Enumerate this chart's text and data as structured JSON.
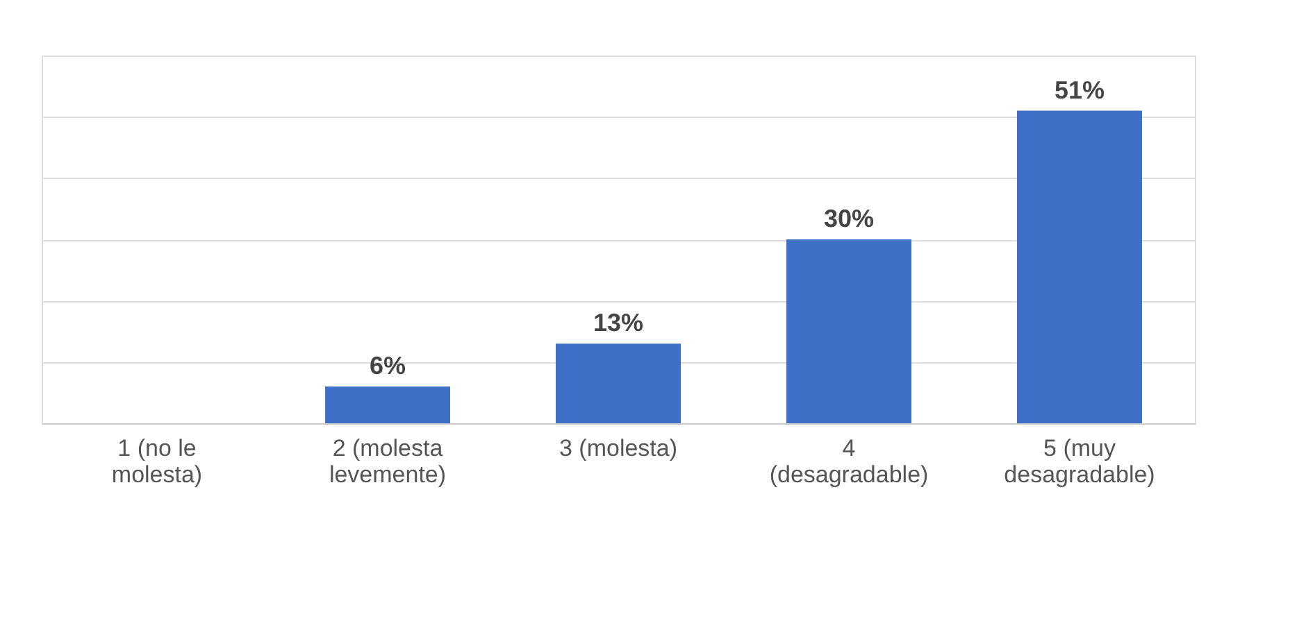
{
  "chart_data": {
    "type": "bar",
    "categories": [
      "1 (no le molesta)",
      "2 (molesta levemente)",
      "3 (molesta)",
      "4 (desagradable)",
      "5 (muy desagradable)"
    ],
    "values": [
      0,
      6,
      13,
      30,
      51
    ],
    "value_labels": [
      null,
      "6%",
      "13%",
      "30%",
      "51%"
    ],
    "color": "#3f6fc6",
    "ylim": [
      0,
      60
    ],
    "yticks": [
      {
        "value": 0,
        "label": null
      },
      {
        "value": 10,
        "label": null
      },
      {
        "value": 20,
        "label": null
      },
      {
        "value": 30,
        "label": null
      },
      {
        "value": 40,
        "label": null
      },
      {
        "value": 50,
        "label": null
      },
      {
        "value": 60,
        "label": null
      }
    ],
    "tick_labels": "x",
    "grid": "y"
  }
}
